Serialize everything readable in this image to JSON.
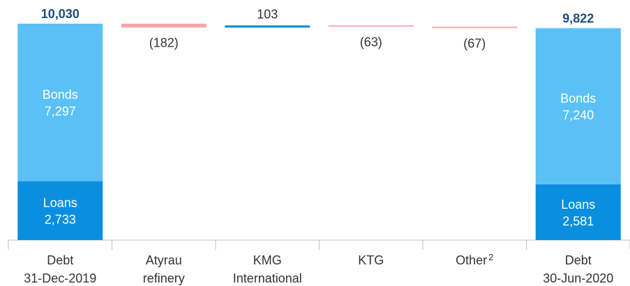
{
  "chart_data": {
    "type": "bar",
    "subtype": "waterfall",
    "categories": [
      [
        "Debt",
        "31-Dec-2019"
      ],
      [
        "Atyrau",
        "refinery"
      ],
      [
        "KMG",
        "International"
      ],
      [
        "KTG"
      ],
      [
        "Other"
      ],
      [
        "Debt",
        "30-Jun-2020"
      ]
    ],
    "category_footnotes": [
      "",
      "",
      "",
      "",
      "2",
      ""
    ],
    "start_total": {
      "label": "10,030",
      "value": 10030,
      "segments": [
        {
          "name": "Loans",
          "value": 2733,
          "label": "2,733",
          "color": "#0a8fe0"
        },
        {
          "name": "Bonds",
          "value": 7297,
          "label": "7,297",
          "color": "#5bc0f5"
        }
      ]
    },
    "changes": [
      {
        "value": -182,
        "label": "(182)",
        "color": "#f4a9a8"
      },
      {
        "value": 103,
        "label": "103",
        "color": "#0a8fe0"
      },
      {
        "value": -63,
        "label": "(63)",
        "color": "#f4a9a8"
      },
      {
        "value": -67,
        "label": "(67)",
        "color": "#f4a9a8"
      }
    ],
    "end_total": {
      "label": "9,822",
      "value": 9822,
      "segments": [
        {
          "name": "Loans",
          "value": 2581,
          "label": "2,581",
          "color": "#0a8fe0"
        },
        {
          "name": "Bonds",
          "value": 7240,
          "label": "7,240",
          "color": "#5bc0f5"
        }
      ]
    },
    "ylim": [
      0,
      10030
    ],
    "axis_color": "#bfbfbf",
    "legend": "none",
    "grid": false
  }
}
